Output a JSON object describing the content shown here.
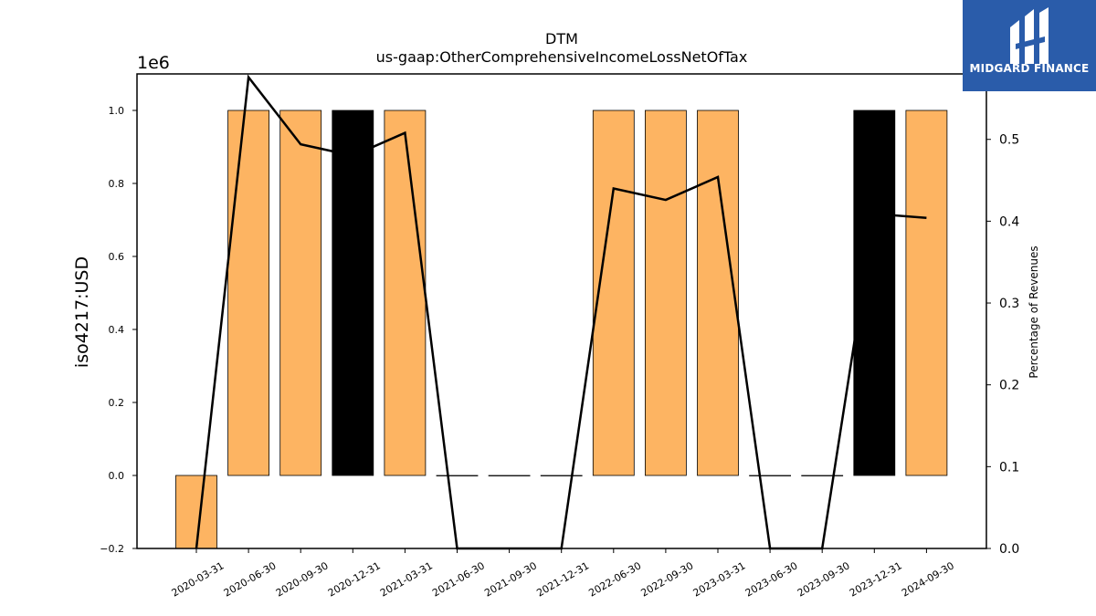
{
  "chart_data": {
    "type": "bar",
    "title": "DTM",
    "subtitle": "us-gaap:OtherComprehensiveIncomeLossNetOfTax",
    "ylabel": "iso4217:USD",
    "y2label": "Percentage of Revenues",
    "y_multiplier_label": "1e6",
    "ylim": [
      -0.2,
      1.1
    ],
    "y2lim": [
      0.0,
      0.58
    ],
    "yticks": [
      "−0.2",
      "0.0",
      "0.2",
      "0.4",
      "0.6",
      "0.8",
      "1.0"
    ],
    "y2ticks": [
      "0.0",
      "0.1",
      "0.2",
      "0.3",
      "0.4",
      "0.5"
    ],
    "grid": false,
    "categories": [
      "2020-03-31",
      "2020-06-30",
      "2020-09-30",
      "2020-12-31",
      "2021-03-31",
      "2021-06-30",
      "2021-09-30",
      "2021-12-31",
      "2022-06-30",
      "2022-09-30",
      "2023-03-31",
      "2023-06-30",
      "2023-09-30",
      "2023-12-31",
      "2024-09-30"
    ],
    "series": [
      {
        "kind": "bar",
        "values": [
          -0.2,
          1.0,
          1.0,
          1.0,
          1.0,
          0.0,
          0.0,
          0.0,
          1.0,
          1.0,
          1.0,
          0.0,
          0.0,
          1.0,
          1.0
        ],
        "bar_colors": [
          "#fdb462",
          "#fdb462",
          "#fdb462",
          "#000000",
          "#fdb462",
          "#fdb462",
          "#fdb462",
          "#fdb462",
          "#fdb462",
          "#fdb462",
          "#fdb462",
          "#fdb462",
          "#fdb462",
          "#000000",
          "#fdb462"
        ]
      },
      {
        "kind": "line",
        "axis": "right",
        "color": "#000000",
        "values": [
          0.0,
          0.576,
          0.494,
          0.48,
          0.508,
          0.0,
          0.0,
          0.0,
          0.44,
          0.426,
          0.454,
          0.0,
          0.0,
          0.409,
          0.404
        ]
      }
    ]
  },
  "logo": {
    "text": "MIDGARD FINANCE"
  }
}
